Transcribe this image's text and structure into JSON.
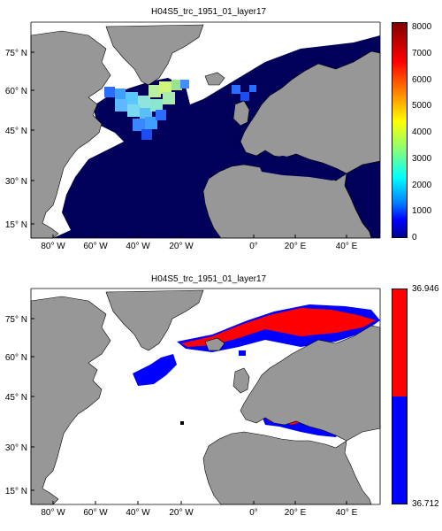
{
  "colors": {
    "land": "#979797",
    "ocean_dark": "#00005a",
    "shelf_white": "#ffffff",
    "high": "#ff0000",
    "low": "#0000ff"
  },
  "panel1": {
    "title": "H04S5_trc_1951_01_layer17",
    "lat_labels": [
      "75° N",
      "60° N",
      "45° N",
      "30° N",
      "15° N"
    ],
    "lon_labels": [
      "80° W",
      "60° W",
      "40° W",
      "20° W",
      "0°",
      "20° E",
      "40° E"
    ],
    "colorbar": {
      "ticks": [
        "8000",
        "7000",
        "6000",
        "5000",
        "4000",
        "3000",
        "2000",
        "1000",
        "0"
      ],
      "min": 0,
      "max": 8000,
      "scale": "jet"
    }
  },
  "panel2": {
    "title": "H04S5_trc_1951_01_layer17",
    "lat_labels": [
      "75° N",
      "60° N",
      "45° N",
      "30° N",
      "15° N"
    ],
    "lon_labels": [
      "80° W",
      "60° W",
      "40° W",
      "20° W",
      "0°",
      "20° E",
      "40° E"
    ],
    "colorbar": {
      "top_label": "36.946",
      "bottom_label": "36.712",
      "upper_color": "#ff0000",
      "lower_color": "#0000ff"
    }
  }
}
